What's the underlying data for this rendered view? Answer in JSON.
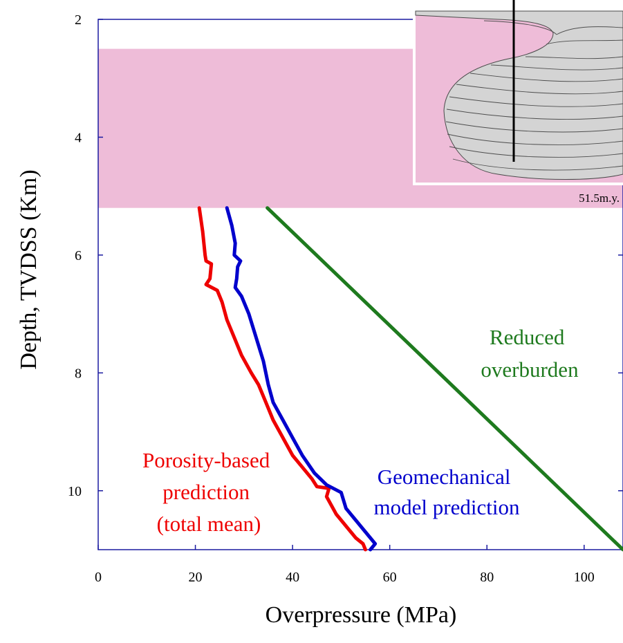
{
  "chart_data": {
    "type": "line",
    "title": "",
    "xlabel": "Overpressure (MPa)",
    "ylabel": "Depth, TVDSS (Km)",
    "xlim": [
      0,
      108
    ],
    "ylim": [
      2,
      11
    ],
    "y_inverted": true,
    "xticks": [
      0,
      20,
      40,
      60,
      80,
      100
    ],
    "yticks": [
      2,
      4,
      6,
      8,
      10
    ],
    "grid": false,
    "shaded_band": {
      "from_depth": 2.5,
      "to_depth": 5.2,
      "color": "#eebcd8"
    },
    "series": [
      {
        "name": "Porosity-based prediction (total mean)",
        "color": "#ee0000",
        "points": [
          [
            20.8,
            5.2
          ],
          [
            21.5,
            5.6
          ],
          [
            22.0,
            6.0
          ],
          [
            22.2,
            6.1
          ],
          [
            23.3,
            6.15
          ],
          [
            23.0,
            6.4
          ],
          [
            22.2,
            6.5
          ],
          [
            24.5,
            6.6
          ],
          [
            25.5,
            6.8
          ],
          [
            26.5,
            7.1
          ],
          [
            28.0,
            7.4
          ],
          [
            29.5,
            7.7
          ],
          [
            31.5,
            8.0
          ],
          [
            33.0,
            8.2
          ],
          [
            34.5,
            8.5
          ],
          [
            36.0,
            8.8
          ],
          [
            38.0,
            9.1
          ],
          [
            40.0,
            9.4
          ],
          [
            42.0,
            9.6
          ],
          [
            44.0,
            9.8
          ],
          [
            45.0,
            9.93
          ],
          [
            47.5,
            9.96
          ],
          [
            47.0,
            10.1
          ],
          [
            49.0,
            10.4
          ],
          [
            51.0,
            10.6
          ],
          [
            53.0,
            10.8
          ],
          [
            54.5,
            10.9
          ],
          [
            55.0,
            11.0
          ]
        ]
      },
      {
        "name": "Geomechanical model prediction",
        "color": "#0000cc",
        "points": [
          [
            26.5,
            5.2
          ],
          [
            27.5,
            5.5
          ],
          [
            28.2,
            5.8
          ],
          [
            28.0,
            6.0
          ],
          [
            29.3,
            6.1
          ],
          [
            28.7,
            6.2
          ],
          [
            28.5,
            6.4
          ],
          [
            28.2,
            6.55
          ],
          [
            29.5,
            6.7
          ],
          [
            31.0,
            7.0
          ],
          [
            32.5,
            7.4
          ],
          [
            34.0,
            7.8
          ],
          [
            35.0,
            8.2
          ],
          [
            36.0,
            8.5
          ],
          [
            38.0,
            8.8
          ],
          [
            40.0,
            9.1
          ],
          [
            42.0,
            9.4
          ],
          [
            44.5,
            9.7
          ],
          [
            47.0,
            9.9
          ],
          [
            50.0,
            10.03
          ],
          [
            51.0,
            10.3
          ],
          [
            53.0,
            10.5
          ],
          [
            55.0,
            10.7
          ],
          [
            57.0,
            10.9
          ],
          [
            56.0,
            11.0
          ]
        ]
      },
      {
        "name": "Reduced overburden",
        "color": "#1e7a1e",
        "points": [
          [
            34.8,
            5.2
          ],
          [
            108,
            11.0
          ]
        ]
      }
    ],
    "annotations": [
      {
        "id": "porosity",
        "lines": [
          "Porosity-based",
          "prediction",
          "(total mean)"
        ],
        "color": "#ee0000"
      },
      {
        "id": "geomech",
        "lines": [
          "Geomechanical",
          "model prediction"
        ],
        "color": "#0000cc"
      },
      {
        "id": "overburden",
        "lines": [
          "Reduced",
          "overburden"
        ],
        "color": "#1e7a1e"
      }
    ],
    "inset": {
      "label": "51.5m.y."
    }
  }
}
